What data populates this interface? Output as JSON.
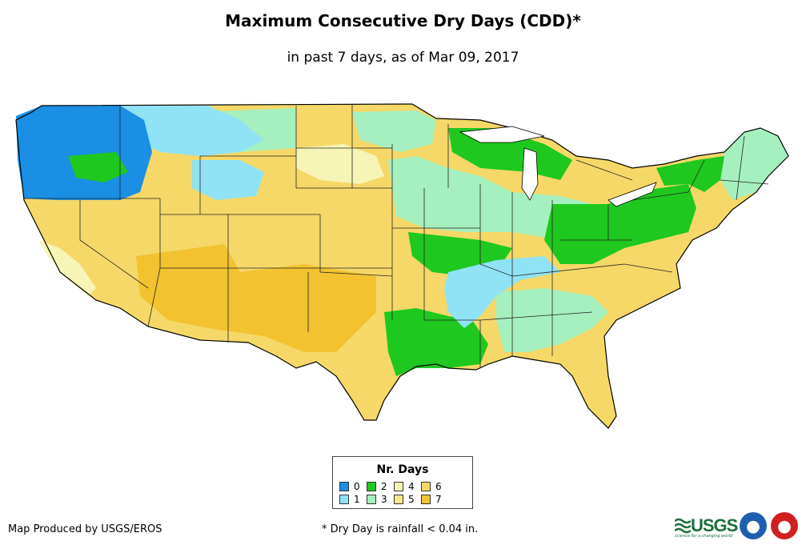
{
  "header": {
    "title": "Maximum Consecutive Dry Days (CDD)*",
    "subtitle": "in past 7 days, as of Mar 09, 2017"
  },
  "legend": {
    "title": "Nr. Days",
    "items": [
      {
        "label": "0",
        "color": "#1a8fe3"
      },
      {
        "label": "1",
        "color": "#8fe3f5"
      },
      {
        "label": "2",
        "color": "#1ec81e"
      },
      {
        "label": "3",
        "color": "#a5f0be"
      },
      {
        "label": "4",
        "color": "#f7f5b6"
      },
      {
        "label": "5",
        "color": "#f9e58a"
      },
      {
        "label": "6",
        "color": "#f6d868"
      },
      {
        "label": "7",
        "color": "#f2c230"
      }
    ]
  },
  "map": {
    "subject": "Contiguous United States",
    "regions": [
      {
        "name": "pacific-northwest",
        "days": "0"
      },
      {
        "name": "northern-rockies",
        "days": "1"
      },
      {
        "name": "southwest",
        "days": "6"
      },
      {
        "name": "great-plains",
        "days": "6"
      },
      {
        "name": "midwest",
        "days": "3"
      },
      {
        "name": "ohio-valley",
        "days": "2"
      },
      {
        "name": "mississippi-valley",
        "days": "1"
      },
      {
        "name": "southeast-coast",
        "days": "6"
      },
      {
        "name": "florida",
        "days": "6"
      },
      {
        "name": "northeast",
        "days": "2"
      },
      {
        "name": "new-england",
        "days": "3"
      },
      {
        "name": "california-coast",
        "days": "4"
      },
      {
        "name": "gulf-coast",
        "days": "2"
      }
    ]
  },
  "footer": {
    "credit": "Map Produced by USGS/EROS",
    "footnote": "* Dry Day is rainfall < 0.04 in.",
    "usgs_text": "USGS",
    "usgs_tagline": "science for a changing world",
    "logos": [
      {
        "name": "noaa",
        "color": "#1f5fae"
      },
      {
        "name": "nws",
        "color": "#d02020"
      }
    ]
  }
}
